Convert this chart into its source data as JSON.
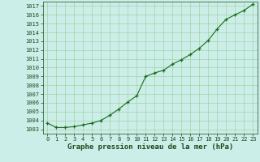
{
  "x": [
    0,
    1,
    2,
    3,
    4,
    5,
    6,
    7,
    8,
    9,
    10,
    11,
    12,
    13,
    14,
    15,
    16,
    17,
    18,
    19,
    20,
    21,
    22,
    23
  ],
  "y": [
    1003.7,
    1003.2,
    1003.2,
    1003.3,
    1003.5,
    1003.7,
    1004.0,
    1004.6,
    1005.3,
    1006.1,
    1006.8,
    1009.0,
    1009.4,
    1009.7,
    1010.4,
    1010.9,
    1011.5,
    1012.2,
    1013.1,
    1014.4,
    1015.5,
    1016.0,
    1016.5,
    1017.2
  ],
  "xlabel": "Graphe pression niveau de la mer (hPa)",
  "ylim": [
    1002.5,
    1017.5
  ],
  "xlim": [
    -0.5,
    23.5
  ],
  "yticks": [
    1003,
    1004,
    1005,
    1006,
    1007,
    1008,
    1009,
    1010,
    1011,
    1012,
    1013,
    1014,
    1015,
    1016,
    1017
  ],
  "xticks": [
    0,
    1,
    2,
    3,
    4,
    5,
    6,
    7,
    8,
    9,
    10,
    11,
    12,
    13,
    14,
    15,
    16,
    17,
    18,
    19,
    20,
    21,
    22,
    23
  ],
  "line_color": "#1a6b1a",
  "marker_color": "#1a6b1a",
  "bg_color": "#cceee8",
  "grid_color": "#99cc99",
  "tick_label_color": "#1a4a1a",
  "xlabel_color": "#1a4a1a",
  "tick_fontsize": 5.0,
  "xlabel_fontsize": 6.5
}
